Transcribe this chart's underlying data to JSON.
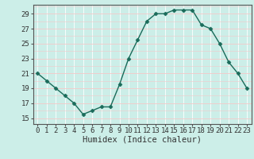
{
  "x": [
    0,
    1,
    2,
    3,
    4,
    5,
    6,
    7,
    8,
    9,
    10,
    11,
    12,
    13,
    14,
    15,
    16,
    17,
    18,
    19,
    20,
    21,
    22,
    23
  ],
  "y": [
    21,
    20,
    19,
    18,
    17,
    15.5,
    16,
    16.5,
    16.5,
    19.5,
    23,
    25.5,
    28,
    29,
    29,
    29.5,
    29.5,
    29.5,
    27.5,
    27,
    25,
    22.5,
    21,
    19
  ],
  "xlabel": "Humidex (Indice chaleur)",
  "xlim": [
    -0.5,
    23.5
  ],
  "ylim": [
    14.2,
    30.2
  ],
  "yticks": [
    15,
    17,
    19,
    21,
    23,
    25,
    27,
    29
  ],
  "xticks": [
    0,
    1,
    2,
    3,
    4,
    5,
    6,
    7,
    8,
    9,
    10,
    11,
    12,
    13,
    14,
    15,
    16,
    17,
    18,
    19,
    20,
    21,
    22,
    23
  ],
  "xtick_labels": [
    "0",
    "1",
    "2",
    "3",
    "4",
    "5",
    "6",
    "7",
    "8",
    "9",
    "10",
    "11",
    "12",
    "13",
    "14",
    "15",
    "16",
    "17",
    "18",
    "19",
    "20",
    "21",
    "22",
    "23"
  ],
  "line_color": "#1a6b5a",
  "marker": "D",
  "marker_size": 2.5,
  "bg_color": "#cceee8",
  "grid_white_color": "#ffffff",
  "grid_pink_color": "#f5c8c8",
  "axis_color": "#555555",
  "font_color": "#333333",
  "label_fontsize": 7.5,
  "tick_fontsize": 6.5
}
